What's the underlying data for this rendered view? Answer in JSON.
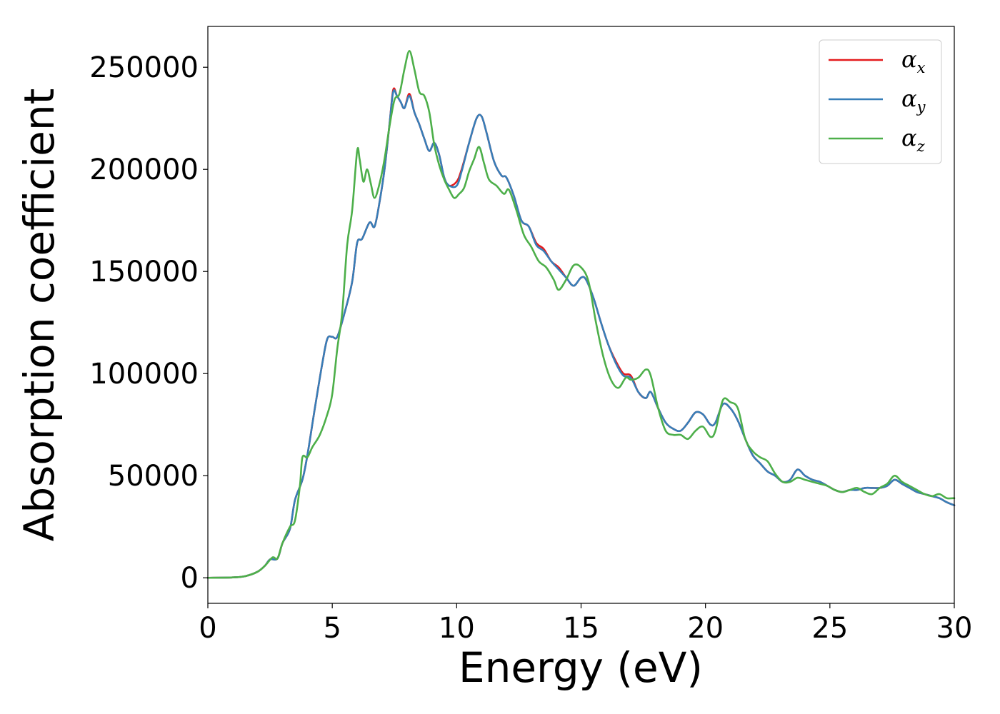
{
  "chart_data": {
    "type": "line",
    "xlabel": "Energy (eV)",
    "ylabel": "Absorption coefficient",
    "xlim": [
      0,
      30
    ],
    "ylim": [
      -12500,
      270000
    ],
    "xticks": [
      0,
      5,
      10,
      15,
      20,
      25,
      30
    ],
    "yticks": [
      0,
      50000,
      100000,
      150000,
      200000,
      250000
    ],
    "grid": false,
    "legend_position": "top-right",
    "series": [
      {
        "name": "αx",
        "symbol": "α",
        "subscript": "x",
        "color": "#e41a1c",
        "x": [
          0,
          1,
          1.5,
          2,
          2.3,
          2.5,
          2.8,
          3,
          3.3,
          3.5,
          3.8,
          4,
          4.3,
          4.6,
          4.8,
          5,
          5.2,
          5.5,
          5.8,
          6,
          6.2,
          6.5,
          6.7,
          6.9,
          7.1,
          7.3,
          7.45,
          7.6,
          7.75,
          7.9,
          8.1,
          8.3,
          8.5,
          8.7,
          8.9,
          9.1,
          9.3,
          9.5,
          9.7,
          10,
          10.2,
          10.5,
          10.8,
          11,
          11.2,
          11.5,
          11.8,
          12,
          12.3,
          12.6,
          12.9,
          13.2,
          13.5,
          13.8,
          14.1,
          14.4,
          14.7,
          15,
          15.2,
          15.5,
          15.8,
          16.1,
          16.4,
          16.7,
          17,
          17.3,
          17.6,
          17.8,
          18.1,
          18.4,
          18.7,
          19,
          19.3,
          19.6,
          19.9,
          20.2,
          20.4,
          20.7,
          21,
          21.3,
          21.6,
          21.9,
          22.2,
          22.5,
          22.8,
          23.1,
          23.4,
          23.7,
          24,
          24.3,
          24.6,
          24.9,
          25.2,
          25.5,
          25.8,
          26.1,
          26.4,
          26.7,
          27,
          27.3,
          27.6,
          27.9,
          28.2,
          28.5,
          28.8,
          29.1,
          29.4,
          29.7,
          30
        ],
        "values": [
          0,
          200,
          800,
          3000,
          6000,
          9000,
          9500,
          17000,
          24000,
          38000,
          48000,
          60000,
          83000,
          105000,
          117000,
          118000,
          118000,
          130000,
          145000,
          164000,
          166000,
          174000,
          172000,
          184000,
          200000,
          222000,
          239000,
          236000,
          233000,
          230000,
          237000,
          228000,
          222000,
          215000,
          209000,
          213000,
          207000,
          196000,
          192000,
          194000,
          200000,
          213000,
          225000,
          226000,
          218000,
          204000,
          197000,
          196000,
          187000,
          175000,
          172000,
          164000,
          161000,
          155000,
          152000,
          147000,
          143000,
          147000,
          146000,
          137000,
          125000,
          114000,
          106000,
          100000,
          99000,
          91000,
          88000,
          91000,
          83000,
          76000,
          73000,
          72000,
          76000,
          81000,
          80000,
          75000,
          76000,
          85000,
          83000,
          77000,
          68000,
          60000,
          56000,
          52000,
          50000,
          47000,
          48000,
          53000,
          50000,
          48000,
          47000,
          45000,
          43000,
          42000,
          43000,
          43000,
          44000,
          44000,
          44000,
          45000,
          48000,
          46000,
          44000,
          42000,
          41000,
          40000,
          39000,
          37000,
          35500
        ]
      },
      {
        "name": "αy",
        "symbol": "α",
        "subscript": "y",
        "color": "#377eb8",
        "x": [
          0,
          1,
          1.5,
          2,
          2.3,
          2.5,
          2.8,
          3,
          3.3,
          3.5,
          3.8,
          4,
          4.3,
          4.6,
          4.8,
          5,
          5.2,
          5.5,
          5.8,
          6,
          6.2,
          6.5,
          6.7,
          6.9,
          7.1,
          7.3,
          7.45,
          7.6,
          7.75,
          7.9,
          8.1,
          8.3,
          8.5,
          8.7,
          8.9,
          9.1,
          9.3,
          9.5,
          9.7,
          10,
          10.2,
          10.5,
          10.8,
          11,
          11.2,
          11.5,
          11.8,
          12,
          12.3,
          12.6,
          12.9,
          13.2,
          13.5,
          13.8,
          14.1,
          14.4,
          14.7,
          15,
          15.2,
          15.5,
          15.8,
          16.1,
          16.4,
          16.7,
          17,
          17.3,
          17.6,
          17.8,
          18.1,
          18.4,
          18.7,
          19,
          19.3,
          19.6,
          19.9,
          20.2,
          20.4,
          20.7,
          21,
          21.3,
          21.6,
          21.9,
          22.2,
          22.5,
          22.8,
          23.1,
          23.4,
          23.7,
          24,
          24.3,
          24.6,
          24.9,
          25.2,
          25.5,
          25.8,
          26.1,
          26.4,
          26.7,
          27,
          27.3,
          27.6,
          27.9,
          28.2,
          28.5,
          28.8,
          29.1,
          29.4,
          29.7,
          30
        ],
        "values": [
          0,
          200,
          800,
          3000,
          6000,
          9000,
          9500,
          17000,
          24000,
          38000,
          48000,
          60000,
          83000,
          105000,
          117000,
          118000,
          118000,
          130000,
          145000,
          164000,
          166000,
          174000,
          172000,
          184000,
          200000,
          222000,
          238000,
          236000,
          233000,
          230000,
          236000,
          228000,
          222000,
          215000,
          209000,
          213000,
          207000,
          196000,
          192000,
          192000,
          199000,
          213000,
          225000,
          226000,
          218000,
          204000,
          197000,
          196000,
          187000,
          175000,
          172000,
          163000,
          160000,
          155000,
          151000,
          147000,
          143000,
          147000,
          146000,
          137000,
          125000,
          114000,
          105000,
          99000,
          98000,
          91000,
          88000,
          91000,
          83000,
          76000,
          73000,
          72000,
          76000,
          81000,
          80000,
          75000,
          76000,
          85000,
          83000,
          77000,
          68000,
          60000,
          56000,
          52000,
          50000,
          47000,
          48000,
          53000,
          50000,
          48000,
          47000,
          45000,
          43000,
          42000,
          43000,
          43000,
          44000,
          44000,
          44000,
          45000,
          48000,
          46000,
          44000,
          42000,
          41000,
          40000,
          39000,
          37000,
          35500
        ]
      },
      {
        "name": "αz",
        "symbol": "α",
        "subscript": "z",
        "color": "#4daf4a",
        "x": [
          0,
          1,
          1.5,
          2,
          2.3,
          2.6,
          2.8,
          3,
          3.3,
          3.5,
          3.7,
          3.8,
          4,
          4.2,
          4.5,
          4.8,
          5,
          5.2,
          5.4,
          5.6,
          5.8,
          6,
          6.1,
          6.25,
          6.4,
          6.55,
          6.7,
          6.9,
          7.1,
          7.3,
          7.5,
          7.7,
          7.9,
          8.1,
          8.3,
          8.5,
          8.7,
          8.9,
          9.1,
          9.3,
          9.5,
          9.7,
          9.9,
          10.1,
          10.3,
          10.5,
          10.7,
          10.9,
          11.1,
          11.3,
          11.6,
          11.9,
          12.1,
          12.4,
          12.7,
          13,
          13.3,
          13.6,
          13.9,
          14.1,
          14.4,
          14.7,
          15,
          15.3,
          15.6,
          15.9,
          16.2,
          16.5,
          16.8,
          17,
          17.3,
          17.6,
          17.8,
          18.1,
          18.4,
          18.7,
          19,
          19.3,
          19.6,
          19.9,
          20.2,
          20.4,
          20.7,
          21,
          21.3,
          21.6,
          21.9,
          22.2,
          22.5,
          22.8,
          23.1,
          23.4,
          23.7,
          24,
          24.3,
          24.6,
          24.9,
          25.2,
          25.5,
          25.8,
          26.1,
          26.4,
          26.7,
          27,
          27.3,
          27.6,
          27.9,
          28.2,
          28.5,
          28.8,
          29.1,
          29.4,
          29.7,
          30
        ],
        "values": [
          0,
          200,
          800,
          3000,
          6000,
          10000,
          9500,
          17000,
          25000,
          28000,
          45000,
          59000,
          59000,
          64000,
          70000,
          80000,
          90000,
          112000,
          130000,
          163000,
          180000,
          209000,
          205000,
          194000,
          200000,
          193000,
          186000,
          193000,
          205000,
          221000,
          234000,
          237000,
          249000,
          258000,
          249000,
          238000,
          236000,
          228000,
          212000,
          202000,
          195000,
          190000,
          186000,
          188000,
          191000,
          199000,
          205000,
          211000,
          203000,
          195000,
          192000,
          188000,
          190000,
          180000,
          168000,
          162000,
          155000,
          152000,
          146000,
          141000,
          146000,
          153000,
          152000,
          145000,
          125000,
          108000,
          97000,
          93000,
          98000,
          97000,
          98000,
          102000,
          99000,
          83000,
          72000,
          70000,
          70000,
          68000,
          72000,
          74000,
          69000,
          72000,
          87000,
          86000,
          83000,
          68000,
          62000,
          59000,
          57000,
          51000,
          47000,
          47000,
          49000,
          48000,
          47000,
          46000,
          45000,
          43000,
          42000,
          43000,
          44000,
          42000,
          41000,
          44000,
          46000,
          50000,
          47000,
          45000,
          43000,
          41000,
          40000,
          41000,
          39000,
          39000
        ]
      }
    ]
  }
}
